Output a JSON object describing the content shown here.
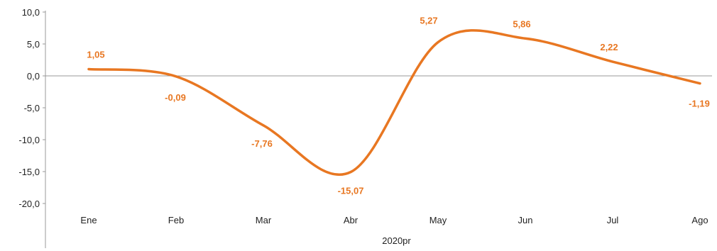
{
  "chart_data": {
    "type": "line",
    "title": "",
    "xlabel": "",
    "ylabel": "",
    "categories": [
      "Ene",
      "Feb",
      "Mar",
      "Abr",
      "May",
      "Jun",
      "Jul",
      "Ago"
    ],
    "group_label": "2020pr",
    "series": [
      {
        "values": [
          1.05,
          -0.09,
          -7.76,
          -15.07,
          5.27,
          5.86,
          2.22,
          -1.19
        ],
        "labels": [
          "1,05",
          "-0,09",
          "-7,76",
          "-15,07",
          "5,27",
          "5,86",
          "2,22",
          "-1,19"
        ]
      }
    ],
    "ylim": [
      -20,
      10
    ],
    "yticks": [
      10,
      5,
      0,
      -5,
      -10,
      -15,
      -20
    ],
    "ytick_labels": [
      "10,0",
      "5,0",
      "0,0",
      "-5,0",
      "-10,0",
      "-15,0",
      "-20,0"
    ],
    "grid": false,
    "legend": "none",
    "colors": {
      "line": "#E87722",
      "labels": "#E87722",
      "axis": "#999999"
    }
  }
}
